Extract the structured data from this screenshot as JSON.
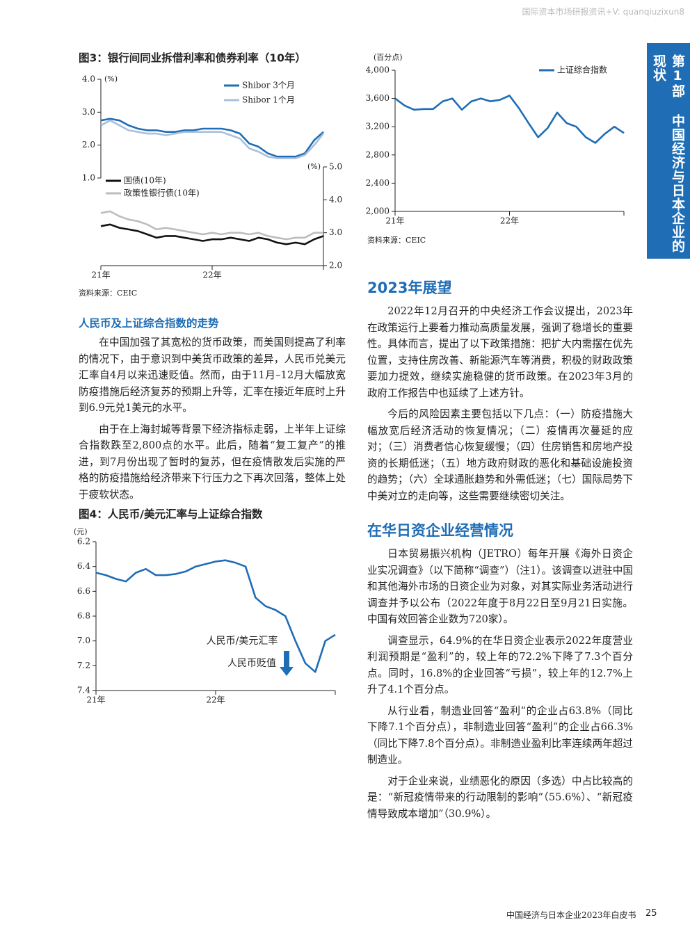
{
  "header": {
    "watermark": "国际资本市场研报资讯+V: quanqiuzixun8"
  },
  "side_tab": "第1部 中国经济与日本企业的现状",
  "left": {
    "heading": "人民币及上证综合指数的走势",
    "paragraphs": [
      "在中国加强了其宽松的货币政策，而美国则提高了利率的情况下，由于意识到中美货币政策的差异，人民币兑美元汇率自4月以来迅速贬值。然而，由于11月–12月大幅放宽防疫措施后经济复苏的预期上升等，汇率在接近年底时上升到6.9元兑1美元的水平。",
      "由于在上海封城等背景下经济指标走弱，上半年上证综合指数跌至2,800点的水平。此后，随着“复工复产”的推进，到7月份出现了暂时的复苏，但在疫情散发后实施的严格的防疫措施给经济带来下行压力之下再次回落，整体上处于疲软状态。"
    ]
  },
  "right": {
    "sections": [
      {
        "heading": "2023年展望",
        "paragraphs": [
          "2022年12月召开的中央经济工作会议提出，2023年在政策运行上要着力推动高质量发展，强调了稳增长的重要性。具体而言，提出了以下政策措施：把扩大内需摆在优先位置，支持住房改善、新能源汽车等消费，积极的财政政策要加力提效，继续实施稳健的货币政策。在2023年3月的政府工作报告中也延续了上述方针。",
          "今后的风险因素主要包括以下几点：（一）防疫措施大幅放宽后经济活动的恢复情况；（二）疫情再次蔓延的应对；（三）消费者信心恢复缓慢；（四）住房销售和房地产投资的长期低迷；（五）地方政府财政的恶化和基础设施投资的趋势；（六）全球通胀趋势和外需低迷；（七）国际局势下中美对立的走向等，这些需要继续密切关注。"
        ]
      },
      {
        "heading": "在华日资企业经营情况",
        "paragraphs": [
          "日本贸易振兴机构（JETRO）每年开展《海外日资企业实况调查》（以下简称“调查”）（注1）。该调查以进驻中国和其他海外市场的日资企业为对象，对其实际业务活动进行调查并予以公布（2022年度于8月22日至9月21日实施。中国有效回答企业数为720家）。",
          "调查显示，64.9%的在华日资企业表示2022年度营业利润预期是“盈利”的，较上年的72.2%下降了7.3个百分点。同时，16.8%的企业回答“亏损”，较上年的12.7%上升了4.1个百分点。",
          "从行业看，制造业回答“盈利”的企业占63.8%（同比下降7.1个百分点），非制造业回答“盈利”的企业占66.3%（同比下降7.8个百分点）。非制造业盈利比率连续两年超过制造业。",
          "对于企业来说，业绩恶化的原因（多选）中占比较高的是：“新冠疫情带来的行动限制的影响”（55.6%）、“新冠疫情导致成本增加”（30.9%）。"
        ]
      }
    ]
  },
  "footer": {
    "title": "中国经济与日本企业2023年白皮书",
    "page": "25"
  },
  "chart_data": [
    {
      "type": "line",
      "title": "图3：银行间同业拆借利率和债券利率（10年）",
      "y_unit": "(%)",
      "y2_unit": "(%)",
      "source": "资料来源：CEIC",
      "categories": [
        "21年",
        null,
        null,
        null,
        null,
        null,
        null,
        null,
        null,
        null,
        null,
        null,
        "22年",
        null,
        null,
        null,
        null,
        null,
        null,
        null,
        null,
        null,
        null,
        null,
        null
      ],
      "ylim": [
        1.0,
        4.0
      ],
      "yticks": [
        {
          "value": 1.0,
          "label": "1.0"
        },
        {
          "value": 2.0,
          "label": "2.0"
        },
        {
          "value": 3.0,
          "label": "3.0"
        },
        {
          "value": 4.0,
          "label": "4.0"
        }
      ],
      "y2lim": [
        2.0,
        5.0
      ],
      "y2ticks": [
        {
          "value": 2.0,
          "label": "2.0"
        },
        {
          "value": 3.0,
          "label": "3.0"
        },
        {
          "value": 4.0,
          "label": "4.0"
        },
        {
          "value": 5.0,
          "label": "5.0"
        }
      ],
      "series": [
        {
          "name": "Shibor 3个月",
          "color": "#1f6db5",
          "values": [
            2.75,
            2.8,
            2.75,
            2.6,
            2.5,
            2.45,
            2.45,
            2.4,
            2.4,
            2.45,
            2.45,
            2.5,
            2.5,
            2.5,
            2.45,
            2.35,
            2.05,
            1.95,
            1.75,
            1.65,
            1.65,
            1.65,
            1.75,
            2.15,
            2.4
          ]
        },
        {
          "name": "Shibor 1个月",
          "color": "#a9bfdc",
          "values": [
            2.6,
            2.75,
            2.6,
            2.45,
            2.4,
            2.35,
            2.35,
            2.3,
            2.35,
            2.4,
            2.4,
            2.4,
            2.4,
            2.4,
            2.3,
            2.2,
            1.9,
            1.8,
            1.65,
            1.6,
            1.6,
            1.6,
            1.7,
            2.0,
            2.35
          ]
        },
        {
          "name": "国债(10年)",
          "color": "#111111",
          "axis": "y2",
          "values": [
            3.2,
            3.25,
            3.15,
            3.1,
            3.05,
            2.95,
            2.85,
            2.9,
            2.9,
            2.85,
            2.8,
            2.75,
            2.8,
            2.8,
            2.85,
            2.8,
            2.75,
            2.85,
            2.8,
            2.7,
            2.65,
            2.7,
            2.65,
            2.8,
            2.9
          ]
        },
        {
          "name": "政策性银行债(10年)",
          "color": "#bdbdbd",
          "axis": "y2",
          "values": [
            3.6,
            3.65,
            3.5,
            3.4,
            3.35,
            3.25,
            3.1,
            3.15,
            3.1,
            3.05,
            3.0,
            2.95,
            3.0,
            2.95,
            3.0,
            3.0,
            2.95,
            3.0,
            2.9,
            2.85,
            2.8,
            2.85,
            2.85,
            3.0,
            3.0
          ]
        }
      ]
    },
    {
      "type": "line",
      "title": "图4：人民币/美元汇率与上证综合指数",
      "y_unit": "(元)",
      "annotations": [
        "人民币/美元汇率",
        "人民币贬值"
      ],
      "categories": [
        "21年",
        null,
        null,
        null,
        null,
        null,
        null,
        null,
        null,
        null,
        null,
        null,
        "22年",
        null,
        null,
        null,
        null,
        null,
        null,
        null,
        null,
        null,
        null,
        null,
        null
      ],
      "ylim": [
        6.2,
        7.4
      ],
      "y_inverted": true,
      "yticks": [
        6.2,
        6.4,
        6.6,
        6.8,
        {
          "value": 7.0,
          "label": "7.0"
        },
        7.2,
        7.4
      ],
      "series": [
        {
          "name": "人民币/美元汇率",
          "color": "#1f6db5",
          "values": [
            6.45,
            6.47,
            6.5,
            6.52,
            6.45,
            6.42,
            6.47,
            6.47,
            6.46,
            6.44,
            6.4,
            6.38,
            6.36,
            6.35,
            6.37,
            6.4,
            6.65,
            6.72,
            6.75,
            6.8,
            7.0,
            7.18,
            7.25,
            7.0,
            6.95
          ]
        }
      ]
    },
    {
      "type": "line",
      "y_unit": "(百分点)",
      "source": "资料来源：CEIC",
      "categories": [
        "21年",
        null,
        null,
        null,
        null,
        null,
        null,
        null,
        null,
        null,
        null,
        null,
        "22年",
        null,
        null,
        null,
        null,
        null,
        null,
        null,
        null,
        null,
        null,
        null,
        null
      ],
      "ylim": [
        2000,
        4000
      ],
      "yticks": [
        {
          "value": 2000,
          "label": "2,000"
        },
        {
          "value": 2400,
          "label": "2,400"
        },
        {
          "value": 2800,
          "label": "2,800"
        },
        {
          "value": 3200,
          "label": "3,200"
        },
        {
          "value": 3600,
          "label": "3,600"
        },
        {
          "value": 4000,
          "label": "4,000"
        }
      ],
      "series": [
        {
          "name": "上证综合指数",
          "color": "#1f6db5",
          "values": [
            3600,
            3500,
            3440,
            3450,
            3450,
            3560,
            3600,
            3440,
            3560,
            3600,
            3560,
            3580,
            3640,
            3460,
            3250,
            3050,
            3180,
            3400,
            3250,
            3200,
            3050,
            2970,
            3100,
            3200,
            3110
          ]
        }
      ]
    }
  ]
}
